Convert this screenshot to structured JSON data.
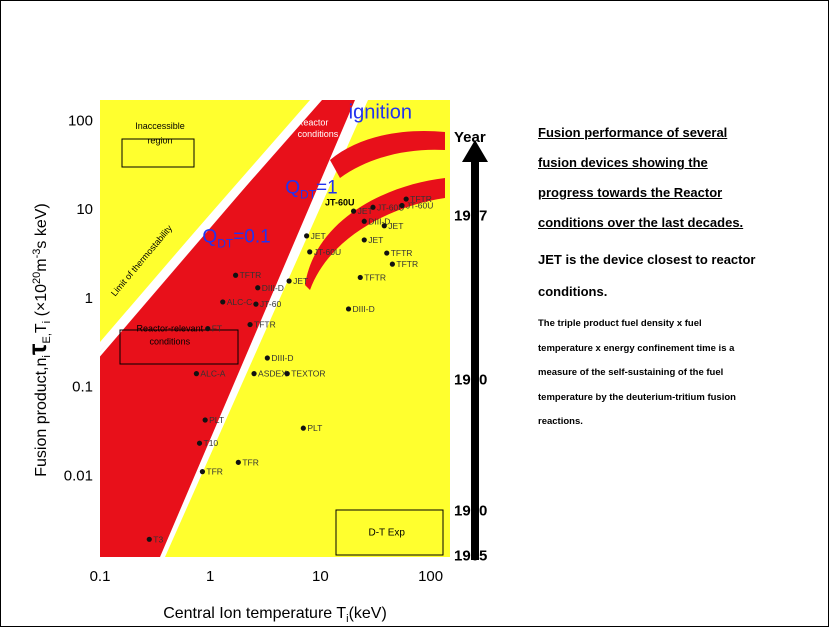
{
  "chart_data": {
    "type": "scatter",
    "x_scale": "log",
    "y_scale": "log",
    "xlim": [
      0.1,
      150
    ],
    "ylim": [
      0.0012,
      170
    ],
    "xlabel": "Central Ion temperature T",
    "xlabel_sub": "i",
    "xlabel_unit": "(keV)",
    "ylabel": "Fusion product,n",
    "ylabel_sub": "i",
    "ylabel_tau": "τ",
    "ylabel_tau_sub": "E,",
    "ylabel_T": "T",
    "ylabel_T_sub": "i",
    "ylabel_unit_a": " (×10",
    "ylabel_unit_sup": "20",
    "ylabel_unit_b": "m",
    "ylabel_unit_sup2": "-3",
    "ylabel_unit_c": "s keV)",
    "x_ticks": [
      {
        "value": 0.1,
        "label": "0.1"
      },
      {
        "value": 1,
        "label": "1"
      },
      {
        "value": 10,
        "label": "10"
      },
      {
        "value": 100,
        "label": "100"
      }
    ],
    "y_ticks": [
      {
        "value": 0.01,
        "label": "0.01"
      },
      {
        "value": 0.1,
        "label": "0.1"
      },
      {
        "value": 1,
        "label": "1"
      },
      {
        "value": 10,
        "label": "10"
      },
      {
        "value": 100,
        "label": "100"
      }
    ],
    "region_labels": [
      {
        "text": "Inaccessible",
        "x": 0.35,
        "y": 80
      },
      {
        "text": "region",
        "x": 0.35,
        "y": 55
      },
      {
        "text": "Reactor-relevant",
        "x": 0.43,
        "y": 0.42
      },
      {
        "text": "conditions",
        "x": 0.43,
        "y": 0.3
      },
      {
        "text": "Limit of thermostability",
        "x": 0.25,
        "y": 2.5
      },
      {
        "text": "Reactor",
        "x": 8.5,
        "y": 88
      },
      {
        "text": "conditions",
        "x": 9.5,
        "y": 65
      },
      {
        "text": "D-T Exp",
        "x": 40,
        "y": 0.0021
      }
    ],
    "annotations": [
      {
        "text": "ignition",
        "x": 35,
        "y": 105
      },
      {
        "text": "Q",
        "sub": "DT",
        "rest": "=1",
        "x": 4.8,
        "y": 15
      },
      {
        "text": "Q",
        "sub": "DT",
        "rest": "=0.1",
        "x": 0.85,
        "y": 4.2
      },
      {
        "text": "JT-60U",
        "x": 11,
        "y": 11
      }
    ],
    "points": [
      {
        "label": "T3",
        "x": 0.28,
        "y": 0.0019
      },
      {
        "label": "TFR",
        "x": 0.85,
        "y": 0.011
      },
      {
        "label": "T10",
        "x": 0.8,
        "y": 0.023
      },
      {
        "label": "PLT",
        "x": 0.9,
        "y": 0.042
      },
      {
        "label": "TFR",
        "x": 1.8,
        "y": 0.014
      },
      {
        "label": "ALC-A",
        "x": 0.75,
        "y": 0.14
      },
      {
        "label": "ASDEX",
        "x": 2.5,
        "y": 0.14
      },
      {
        "label": "FT",
        "x": 0.95,
        "y": 0.45
      },
      {
        "label": "ALC-C",
        "x": 1.3,
        "y": 0.9
      },
      {
        "label": "TFTR",
        "x": 1.7,
        "y": 1.8
      },
      {
        "label": "TFTR",
        "x": 2.3,
        "y": 0.5
      },
      {
        "label": "JT-60",
        "x": 2.6,
        "y": 0.85
      },
      {
        "label": "DIII-D",
        "x": 2.7,
        "y": 1.3
      },
      {
        "label": "DIII-D",
        "x": 3.3,
        "y": 0.21
      },
      {
        "label": "TEXTOR",
        "x": 5,
        "y": 0.14
      },
      {
        "label": "JET",
        "x": 5.2,
        "y": 1.55
      },
      {
        "label": "PLT",
        "x": 7,
        "y": 0.034
      },
      {
        "label": "JET",
        "x": 7.5,
        "y": 5
      },
      {
        "label": "JT-60U",
        "x": 8,
        "y": 3.3
      },
      {
        "label": "DIII-D",
        "x": 18,
        "y": 0.75
      },
      {
        "label": "TFTR",
        "x": 23,
        "y": 1.7
      },
      {
        "label": "JET",
        "x": 25,
        "y": 4.5
      },
      {
        "label": "DIII-D",
        "x": 25,
        "y": 7.3
      },
      {
        "label": "JET",
        "x": 20,
        "y": 9.5
      },
      {
        "label": "JT-60U",
        "x": 30,
        "y": 10.5
      },
      {
        "label": "JET",
        "x": 38,
        "y": 6.5
      },
      {
        "label": "TFTR",
        "x": 40,
        "y": 3.2
      },
      {
        "label": "TFTR",
        "x": 45,
        "y": 2.4
      },
      {
        "label": "JT-60U",
        "x": 55,
        "y": 11
      },
      {
        "label": "TFTR",
        "x": 60,
        "y": 13
      }
    ],
    "timeline": {
      "title": "Year",
      "years": [
        {
          "label": "1997",
          "y": 8.5
        },
        {
          "label": "1980",
          "y": 0.12
        },
        {
          "label": "1970",
          "y": 0.004
        },
        {
          "label": "1965",
          "y": 0.00125
        }
      ]
    }
  },
  "side": {
    "headline": [
      "Fusion performance of several",
      "fusion devices showing the",
      "progress towards the Reactor",
      "conditions over the last decades."
    ],
    "jet_note": [
      "JET is the device closest to reactor",
      "conditions."
    ],
    "triple_note": [
      "The triple product fuel density x fuel",
      "temperature x energy confinement time is a",
      "measure of the self-sustaining of the fuel",
      "temperature by the deuterium-tritium fusion",
      "reactions."
    ]
  },
  "colors": {
    "yellow": "#ffff2e",
    "red": "#e8101a",
    "outer": "#f7c23d",
    "ink": "#000000",
    "annotation": "#2233ee"
  }
}
